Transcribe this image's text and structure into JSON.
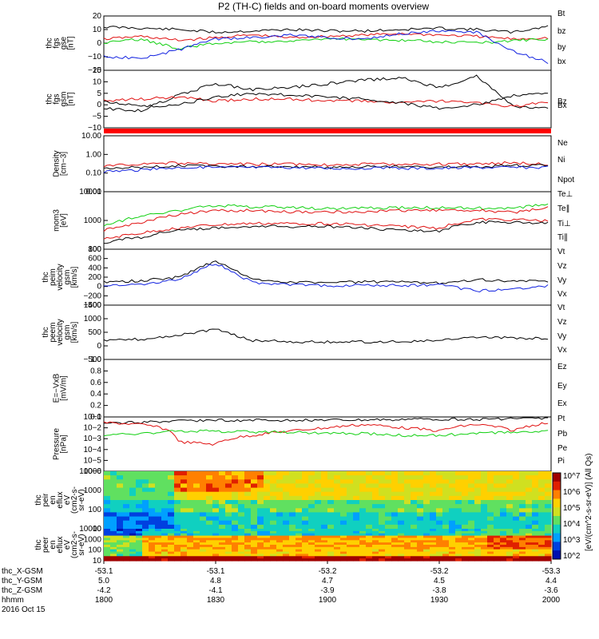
{
  "title": "P2 (TH-C) fields and on-board moments overview",
  "colors": {
    "black": "#000000",
    "red": "#e01010",
    "green": "#10d010",
    "blue": "#1020e0"
  },
  "panels": [
    {
      "id": "fgs",
      "ylabel": [
        "thc",
        "fgs",
        "gse",
        "[nT]"
      ],
      "ticks": [
        "20",
        "10",
        "0",
        "−10",
        "−20"
      ],
      "legend": [
        {
          "text": "Bt",
          "color": "#000000"
        },
        {
          "text": "bz",
          "color": "#e01010"
        },
        {
          "text": "by",
          "color": "#10d010"
        },
        {
          "text": "bx",
          "color": "#1020e0"
        }
      ]
    },
    {
      "id": "fgs_gsm",
      "ylabel": [
        "thc",
        "fgs",
        "gsm",
        "[nT]"
      ],
      "ticks": [
        "15",
        "10",
        "5",
        "0",
        "−5",
        "−10"
      ],
      "legend": [
        {
          "text": "Bz",
          "color": "#e01010"
        },
        {
          "text": "Bx",
          "color": "#000000"
        }
      ]
    },
    {
      "id": "density",
      "ylabel": [
        "Density",
        "[cm−3]"
      ],
      "ticks": [
        "10.00",
        "1.00",
        "0.10",
        "0.01"
      ],
      "legend": [
        {
          "text": "Ne",
          "color": "#e01010"
        },
        {
          "text": "Ni",
          "color": "#000000"
        },
        {
          "text": "Npot",
          "color": "#1020e0"
        }
      ]
    },
    {
      "id": "temp",
      "ylabel": [
        "mom3",
        "[eV]"
      ],
      "ticks": [
        "10000",
        "1000",
        "100"
      ],
      "legend": [
        {
          "text": "Te⊥",
          "color": "#e01010"
        },
        {
          "text": "Te∥",
          "color": "#000000"
        },
        {
          "text": "Ti⊥",
          "color": "#e01010"
        },
        {
          "text": "Ti∥",
          "color": "#10d010"
        }
      ]
    },
    {
      "id": "vi",
      "ylabel": [
        "thc",
        "peim",
        "velocity",
        "gsm",
        "[km/s]"
      ],
      "ticks": [
        "800",
        "600",
        "400",
        "200",
        "0",
        "−200",
        "−400"
      ],
      "legend": [
        {
          "text": "Vt",
          "color": "#000000"
        },
        {
          "text": "Vz",
          "color": "#e01010"
        },
        {
          "text": "Vy",
          "color": "#10d010"
        },
        {
          "text": "Vx",
          "color": "#1020e0"
        }
      ]
    },
    {
      "id": "ve",
      "ylabel": [
        "thc",
        "peem",
        "velocity",
        "gsm",
        "[km/s]"
      ],
      "ticks": [
        "1500",
        "1000",
        "500",
        "0",
        "−500"
      ],
      "legend": [
        {
          "text": "Vt",
          "color": "#000000"
        },
        {
          "text": "Vz",
          "color": "#e01010"
        },
        {
          "text": "Vy",
          "color": "#10d010"
        },
        {
          "text": "Vx",
          "color": "#1020e0"
        }
      ]
    },
    {
      "id": "efield",
      "ylabel": [
        "E=−VxB",
        "[mV/m]"
      ],
      "ticks": [
        "1.0",
        "0.8",
        "0.6",
        "0.4",
        "0.2",
        "0.0"
      ],
      "legend": [
        {
          "text": "Ez",
          "color": "#e01010"
        },
        {
          "text": "Ey",
          "color": "#10d010"
        },
        {
          "text": "Ex",
          "color": "#1020e0"
        }
      ]
    },
    {
      "id": "pressure",
      "ylabel": [
        "Pressure",
        "[nPa]"
      ],
      "ticks": [
        "10−1",
        "10−2",
        "10−3",
        "10−4",
        "10−5",
        "10−6"
      ],
      "legend": [
        {
          "text": "Pt",
          "color": "#000000"
        },
        {
          "text": "Pb",
          "color": "#e01010"
        },
        {
          "text": "Pe",
          "color": "#10d010"
        },
        {
          "text": "Pi",
          "color": "#1020e0"
        }
      ]
    },
    {
      "id": "ispec",
      "ylabel": [
        "thc",
        "peir",
        "en",
        "eflux",
        "eV",
        "(cm2-s-",
        "sr-eV)"
      ],
      "ticks": [
        "10000",
        "1000",
        "100",
        "10"
      ],
      "legend": []
    },
    {
      "id": "espec",
      "ylabel": [
        "thc",
        "peer",
        "en",
        "eflux",
        "eV",
        "(cm2-s-",
        "sr-eV)"
      ],
      "ticks": [
        "10000",
        "1000",
        "100",
        "10"
      ],
      "legend": []
    }
  ],
  "colorbar": {
    "label": "[eV/(cm^2-s-sr-eV)] (All Qs)",
    "ticks": [
      "10^7",
      "10^6",
      "10^5",
      "10^4",
      "10^3",
      "10^2"
    ]
  },
  "xaxis": {
    "rows": [
      {
        "label": "thc_X-GSM",
        "values": [
          "-53.1",
          "-53.1",
          "-53.2",
          "-53.2",
          "-53.3"
        ]
      },
      {
        "label": "thc_Y-GSM",
        "values": [
          "5.0",
          "4.8",
          "4.7",
          "4.5",
          "4.4"
        ]
      },
      {
        "label": "thc_Z-GSM",
        "values": [
          "-4.2",
          "-4.1",
          "-3.9",
          "-3.8",
          "-3.6"
        ]
      },
      {
        "label": "hhmm",
        "values": [
          "1800",
          "1830",
          "1900",
          "1930",
          "2000"
        ]
      }
    ],
    "date": "2016 Oct 15"
  },
  "chart_data": {
    "type": "line",
    "title": "P2 (TH-C) fields and on-board moments overview",
    "x": [
      "1800",
      "1810",
      "1820",
      "1830",
      "1840",
      "1850",
      "1900",
      "1910",
      "1920",
      "1930",
      "1940",
      "1950",
      "2000"
    ],
    "series": [
      {
        "panel": "fgs",
        "name": "Bt",
        "values": [
          12,
          11,
          10,
          8,
          9,
          10,
          9,
          9,
          10,
          11,
          10,
          8,
          13
        ]
      },
      {
        "panel": "fgs",
        "name": "bz",
        "values": [
          3,
          5,
          2,
          4,
          6,
          4,
          5,
          6,
          7,
          6,
          5,
          3,
          4
        ]
      },
      {
        "panel": "fgs",
        "name": "by",
        "values": [
          0,
          3,
          -4,
          0,
          1,
          2,
          3,
          3,
          2,
          1,
          0,
          2,
          3
        ]
      },
      {
        "panel": "fgs",
        "name": "bx",
        "values": [
          -10,
          -11,
          -5,
          3,
          4,
          6,
          4,
          3,
          7,
          9,
          8,
          -6,
          -15
        ]
      },
      {
        "panel": "fgs_gsm",
        "name": "Bx",
        "values": [
          -5,
          -6,
          2,
          8,
          5,
          6,
          8,
          10,
          11,
          6,
          12,
          -4,
          -5
        ]
      },
      {
        "panel": "fgs_gsm",
        "name": "Bz",
        "values": [
          -1,
          0,
          1,
          -1,
          0,
          0,
          -1,
          -1,
          -2,
          -1,
          -2,
          -4,
          -1
        ]
      },
      {
        "panel": "fgs_gsm",
        "name": "By",
        "values": [
          -1,
          -4,
          -3,
          1,
          3,
          2,
          1,
          0,
          -2,
          -5,
          -3,
          2,
          3
        ]
      },
      {
        "panel": "density",
        "name": "Ne",
        "values": [
          0.25,
          0.3,
          0.35,
          0.3,
          0.3,
          0.3,
          0.28,
          0.3,
          0.3,
          0.3,
          0.32,
          0.35,
          0.3
        ]
      },
      {
        "panel": "density",
        "name": "Ni",
        "values": [
          0.18,
          0.2,
          0.25,
          0.22,
          0.22,
          0.22,
          0.2,
          0.22,
          0.22,
          0.2,
          0.22,
          0.25,
          0.25
        ]
      },
      {
        "panel": "density",
        "name": "Npot",
        "values": [
          0.12,
          0.15,
          0.2,
          0.2,
          0.2,
          0.2,
          0.18,
          0.18,
          0.18,
          0.18,
          0.2,
          0.2,
          0.2
        ]
      },
      {
        "panel": "temp",
        "name": "Ti∥",
        "values": [
          300,
          800,
          1500,
          2500,
          2200,
          2000,
          1800,
          1900,
          2000,
          2000,
          1900,
          1800,
          3000
        ]
      },
      {
        "panel": "temp",
        "name": "Ti⊥",
        "values": [
          200,
          400,
          1000,
          1500,
          1500,
          1300,
          1300,
          1300,
          1500,
          1500,
          1500,
          1200,
          2000
        ]
      },
      {
        "panel": "temp",
        "name": "Te⊥",
        "values": [
          80,
          150,
          250,
          350,
          400,
          400,
          400,
          350,
          300,
          250,
          600,
          600,
          500
        ]
      },
      {
        "panel": "temp",
        "name": "Te∥",
        "values": [
          60,
          100,
          200,
          250,
          300,
          300,
          300,
          250,
          200,
          180,
          450,
          450,
          400
        ]
      },
      {
        "panel": "vi",
        "name": "Vt",
        "values": [
          100,
          120,
          200,
          550,
          150,
          100,
          80,
          100,
          90,
          80,
          150,
          120,
          100
        ]
      },
      {
        "panel": "vi",
        "name": "Vx",
        "values": [
          30,
          50,
          150,
          500,
          80,
          40,
          20,
          30,
          20,
          40,
          -100,
          -50,
          20
        ]
      },
      {
        "panel": "ve",
        "name": "Vt",
        "values": [
          200,
          250,
          400,
          600,
          200,
          150,
          150,
          150,
          150,
          200,
          300,
          300,
          250
        ]
      },
      {
        "panel": "pressure",
        "name": "Pt",
        "values": [
          0.03,
          0.03,
          0.04,
          0.05,
          0.05,
          0.05,
          0.05,
          0.05,
          0.06,
          0.06,
          0.06,
          0.07,
          0.08
        ]
      },
      {
        "panel": "pressure",
        "name": "Pb",
        "values": [
          0.03,
          0.02,
          0.0005,
          0.0003,
          0.002,
          0.005,
          0.01,
          0.02,
          0.01,
          0.005,
          0.02,
          0.005,
          0.03
        ]
      },
      {
        "panel": "pressure",
        "name": "Pe",
        "values": [
          0.002,
          0.003,
          0.005,
          0.005,
          0.004,
          0.004,
          0.003,
          0.003,
          0.002,
          0.002,
          0.003,
          0.004,
          0.005
        ]
      }
    ],
    "ylims": {
      "fgs": [
        -20,
        20
      ],
      "fgs_gsm": [
        -15,
        15
      ],
      "density": [
        0.01,
        10
      ],
      "temp": [
        30,
        10000
      ],
      "vi": [
        -400,
        800
      ],
      "ve": [
        -500,
        1500
      ],
      "efield": [
        0,
        1
      ],
      "pressure": [
        1e-06,
        0.1
      ]
    }
  }
}
